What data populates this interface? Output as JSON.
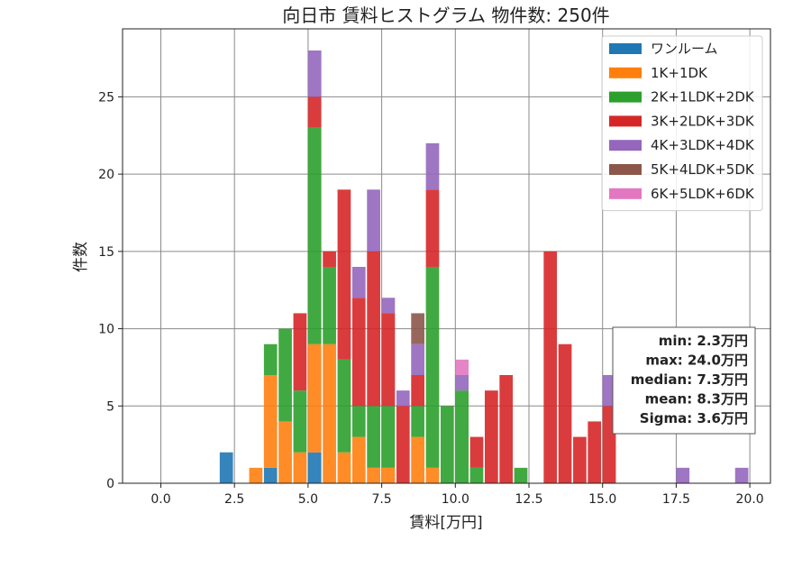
{
  "chart_data": {
    "type": "bar",
    "stacked": true,
    "title": "向日市 賃料ヒストグラム  物件数: 250件",
    "xlabel": "賃料[万円]",
    "ylabel": "件数",
    "xlim": [
      -1.3,
      20.7
    ],
    "ylim": [
      0,
      29.4
    ],
    "xticks": [
      0.0,
      2.5,
      5.0,
      7.5,
      10.0,
      12.5,
      15.0,
      17.5,
      20.0
    ],
    "xtick_labels": [
      "0.0",
      "2.5",
      "5.0",
      "7.5",
      "10.0",
      "12.5",
      "15.0",
      "17.5",
      "20.0"
    ],
    "yticks": [
      0,
      5,
      10,
      15,
      20,
      25
    ],
    "ytick_labels": [
      "0",
      "5",
      "10",
      "15",
      "20",
      "25"
    ],
    "grid": true,
    "bin_width": 0.5,
    "legend_position": "top-right",
    "stats": [
      "min: 2.3万円",
      "max: 24.0万円",
      "median: 7.3万円",
      "mean: 8.3万円",
      "Sigma: 3.6万円"
    ],
    "series": [
      {
        "name": "ワンルーム",
        "color": "#1f77b4",
        "bins": [
          [
            2.0,
            2
          ],
          [
            3.5,
            1
          ],
          [
            5.0,
            2
          ]
        ]
      },
      {
        "name": "1K+1DK",
        "color": "#ff7f0e",
        "bins": [
          [
            3.0,
            1
          ],
          [
            3.5,
            6
          ],
          [
            4.0,
            4
          ],
          [
            4.5,
            2
          ],
          [
            5.0,
            7
          ],
          [
            5.5,
            9
          ],
          [
            6.0,
            2
          ],
          [
            6.5,
            3
          ],
          [
            7.0,
            1
          ],
          [
            7.5,
            1
          ],
          [
            8.5,
            3
          ],
          [
            9.0,
            1
          ]
        ]
      },
      {
        "name": "2K+1LDK+2DK",
        "color": "#2ca02c",
        "bins": [
          [
            3.5,
            2
          ],
          [
            4.0,
            6
          ],
          [
            4.5,
            4
          ],
          [
            5.0,
            14
          ],
          [
            5.5,
            5
          ],
          [
            6.0,
            6
          ],
          [
            6.5,
            2
          ],
          [
            7.0,
            4
          ],
          [
            7.5,
            4
          ],
          [
            8.5,
            2
          ],
          [
            9.0,
            13
          ],
          [
            9.5,
            5
          ],
          [
            10.0,
            6
          ],
          [
            10.5,
            1
          ],
          [
            12.0,
            1
          ]
        ]
      },
      {
        "name": "3K+2LDK+3DK",
        "color": "#d62728",
        "bins": [
          [
            4.5,
            5
          ],
          [
            5.0,
            2
          ],
          [
            5.5,
            1
          ],
          [
            6.0,
            11
          ],
          [
            6.5,
            7
          ],
          [
            7.0,
            10
          ],
          [
            7.5,
            6
          ],
          [
            8.0,
            5
          ],
          [
            8.5,
            2
          ],
          [
            9.0,
            5
          ],
          [
            10.5,
            2
          ],
          [
            11.0,
            6
          ],
          [
            11.5,
            7
          ],
          [
            13.0,
            15
          ],
          [
            13.5,
            9
          ],
          [
            14.0,
            3
          ],
          [
            14.5,
            4
          ],
          [
            15.0,
            5
          ]
        ]
      },
      {
        "name": "4K+3LDK+4DK",
        "color": "#9467bd",
        "bins": [
          [
            5.0,
            3
          ],
          [
            6.5,
            2
          ],
          [
            7.0,
            4
          ],
          [
            7.5,
            1
          ],
          [
            8.0,
            1
          ],
          [
            8.5,
            2
          ],
          [
            9.0,
            3
          ],
          [
            10.0,
            1
          ],
          [
            15.0,
            2
          ],
          [
            17.5,
            1
          ],
          [
            19.5,
            1
          ]
        ]
      },
      {
        "name": "5K+4LDK+5DK",
        "color": "#8c564b",
        "bins": [
          [
            8.5,
            2
          ]
        ]
      },
      {
        "name": "6K+5LDK+6DK",
        "color": "#e377c2",
        "bins": [
          [
            10.0,
            1
          ]
        ]
      }
    ]
  }
}
